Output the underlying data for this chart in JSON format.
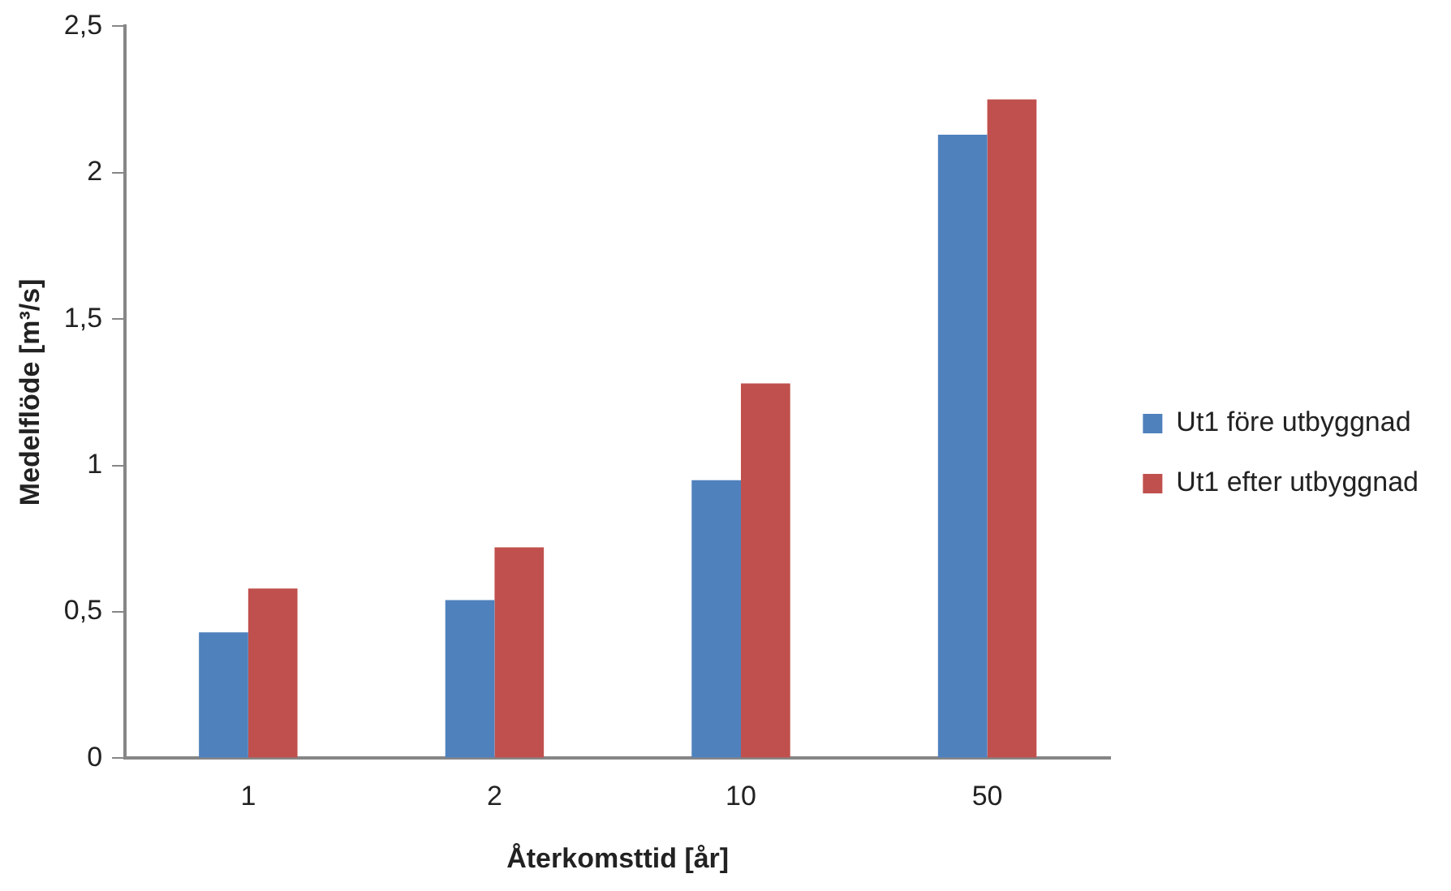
{
  "chart_data": {
    "type": "bar",
    "xlabel": "Återkomsttid [år]",
    "ylabel": "Medelflöde [m³/s]",
    "categories": [
      "1",
      "2",
      "10",
      "50"
    ],
    "series": [
      {
        "name": "Ut1 före utbyggnad",
        "color": "#4f81bd",
        "values": [
          0.43,
          0.54,
          0.95,
          2.13
        ]
      },
      {
        "name": "Ut1 efter utbyggnad",
        "color": "#c0504d",
        "values": [
          0.58,
          0.72,
          1.28,
          2.25
        ]
      }
    ],
    "ylim": [
      0,
      2.5
    ],
    "yticks": [
      0,
      {
        "value": 0.5,
        "label": "0,5"
      },
      1,
      {
        "value": 1.5,
        "label": "1,5"
      },
      2,
      {
        "value": 2.5,
        "label": "2,5"
      }
    ],
    "grid": false,
    "legend": "right"
  }
}
